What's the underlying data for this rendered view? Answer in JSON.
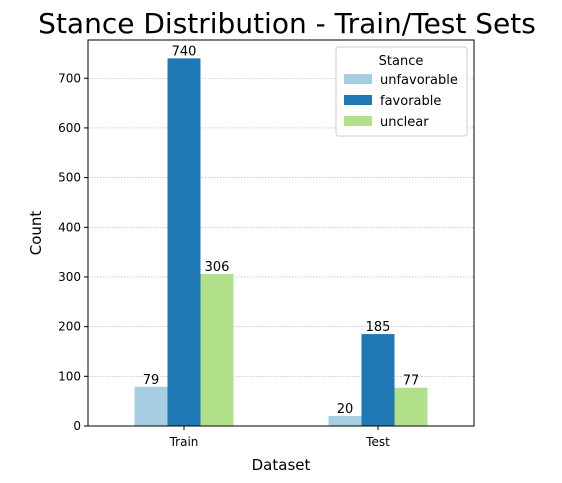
{
  "chart_data": {
    "type": "bar",
    "title": "Stance Distribution - Train/Test Sets",
    "xlabel": "Dataset",
    "ylabel": "Count",
    "categories": [
      "Train",
      "Test"
    ],
    "ylim": [
      0,
      777
    ],
    "yticks": [
      0,
      100,
      200,
      300,
      400,
      500,
      600,
      700
    ],
    "grid": "y-dotted",
    "legend": {
      "title": "Stance",
      "position": "top-right"
    },
    "series": [
      {
        "name": "unfavorable",
        "values": [
          79,
          20
        ],
        "color": "#a6cee3"
      },
      {
        "name": "favorable",
        "values": [
          740,
          185
        ],
        "color": "#1f78b4"
      },
      {
        "name": "unclear",
        "values": [
          306,
          77
        ],
        "color": "#b2df8a"
      }
    ]
  }
}
